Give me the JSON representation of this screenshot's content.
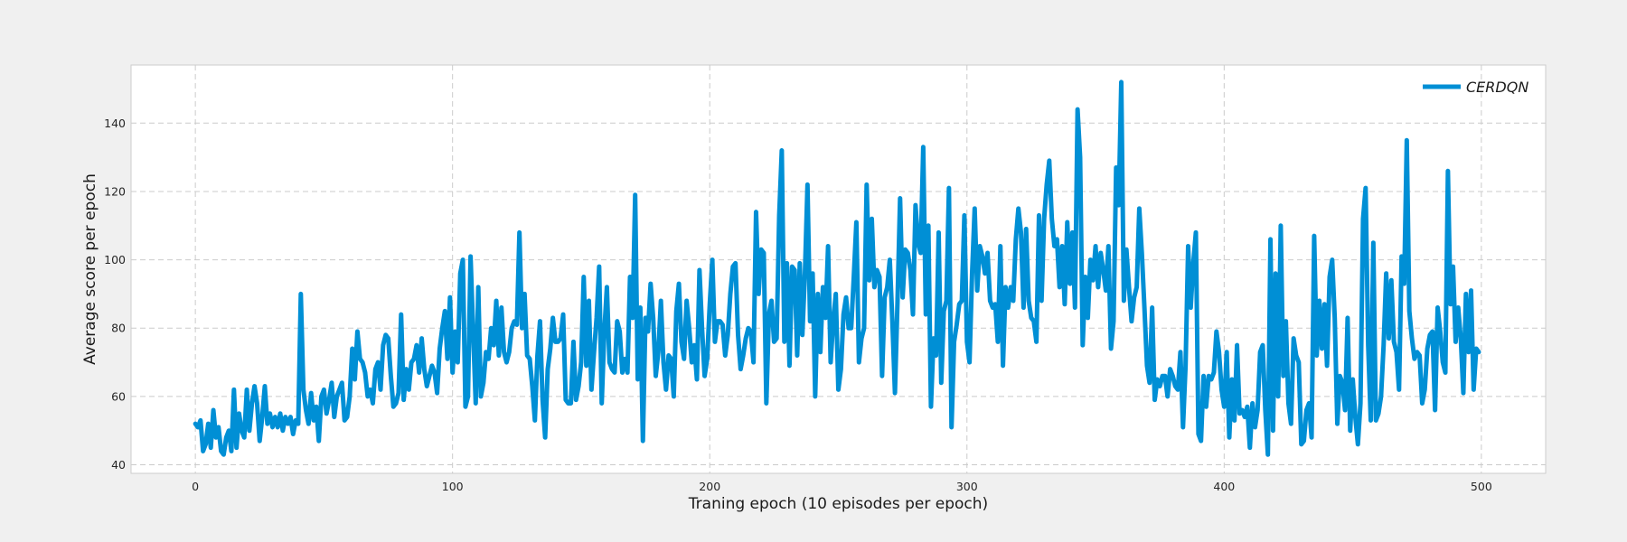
{
  "chart_data": {
    "type": "line",
    "title": "",
    "xlabel": "Traning epoch (10 episodes per epoch)",
    "ylabel": "Average score per epoch",
    "xlim": [
      -25,
      525
    ],
    "ylim": [
      37.5,
      157
    ],
    "xticks": [
      0,
      100,
      200,
      300,
      400,
      500
    ],
    "yticks": [
      40,
      60,
      80,
      100,
      120,
      140
    ],
    "grid": true,
    "legend_position": "top-right",
    "colors": {
      "series": "#008fd5",
      "grid": "#cbcbcb",
      "background": "#f0f0f0",
      "plot": "#ffffff",
      "frame": "#cccccc"
    },
    "series": [
      {
        "name": "CERDQN",
        "x_start": 0,
        "x_step": 1,
        "values": [
          52,
          51,
          53,
          44,
          46,
          52,
          45,
          56,
          48,
          51,
          44,
          43,
          48,
          50,
          44,
          62,
          45,
          55,
          50,
          48,
          62,
          50,
          58,
          63,
          58,
          47,
          54,
          63,
          52,
          55,
          51,
          54,
          51,
          55,
          50,
          54,
          52,
          54,
          49,
          53,
          52,
          90,
          62,
          56,
          52,
          61,
          53,
          57,
          47,
          60,
          62,
          55,
          59,
          64,
          54,
          60,
          62,
          64,
          53,
          54,
          60,
          74,
          65,
          79,
          71,
          70,
          67,
          60,
          62,
          58,
          68,
          70,
          62,
          75,
          78,
          77,
          66,
          57,
          58,
          61,
          84,
          59,
          68,
          62,
          70,
          71,
          75,
          67,
          77,
          68,
          63,
          66,
          69,
          67,
          61,
          74,
          80,
          85,
          71,
          89,
          67,
          79,
          70,
          96,
          100,
          57,
          60,
          101,
          79,
          58,
          92,
          60,
          64,
          73,
          71,
          80,
          75,
          88,
          72,
          86,
          73,
          70,
          73,
          80,
          82,
          81,
          108,
          80,
          90,
          72,
          71,
          63,
          53,
          72,
          82,
          59,
          48,
          68,
          74,
          83,
          76,
          76,
          77,
          84,
          59,
          58,
          58,
          76,
          59,
          63,
          70,
          95,
          69,
          88,
          62,
          73,
          83,
          98,
          58,
          79,
          92,
          70,
          68,
          67,
          82,
          79,
          67,
          71,
          67,
          95,
          83,
          119,
          65,
          86,
          47,
          83,
          79,
          93,
          83,
          66,
          73,
          88,
          70,
          62,
          72,
          71,
          60,
          85,
          93,
          76,
          71,
          88,
          80,
          70,
          75,
          65,
          97,
          80,
          66,
          71,
          87,
          100,
          76,
          82,
          82,
          81,
          72,
          78,
          90,
          98,
          99,
          78,
          68,
          72,
          77,
          80,
          79,
          70,
          114,
          90,
          103,
          102,
          58,
          84,
          88,
          76,
          77,
          113,
          132,
          76,
          99,
          69,
          98,
          97,
          72,
          99,
          78,
          96,
          122,
          82,
          96,
          60,
          90,
          73,
          92,
          83,
          104,
          70,
          82,
          90,
          62,
          68,
          84,
          89,
          80,
          80,
          95,
          111,
          70,
          77,
          80,
          122,
          94,
          112,
          92,
          97,
          95,
          66,
          89,
          92,
          100,
          82,
          61,
          88,
          118,
          89,
          103,
          102,
          97,
          84,
          116,
          105,
          102,
          133,
          84,
          110,
          57,
          77,
          72,
          108,
          64,
          85,
          88,
          121,
          51,
          76,
          81,
          87,
          88,
          113,
          76,
          70,
          96,
          115,
          91,
          104,
          101,
          96,
          102,
          88,
          86,
          87,
          76,
          104,
          69,
          92,
          86,
          92,
          88,
          106,
          115,
          108,
          86,
          109,
          88,
          83,
          82,
          76,
          113,
          88,
          112,
          122,
          129,
          112,
          104,
          106,
          92,
          104,
          87,
          111,
          93,
          108,
          86,
          144,
          130,
          75,
          95,
          83,
          100,
          94,
          104,
          92,
          102,
          97,
          91,
          104,
          74,
          82,
          127,
          116,
          152,
          88,
          103,
          92,
          82,
          89,
          92,
          115,
          102,
          86,
          69,
          64,
          86,
          59,
          65,
          63,
          66,
          66,
          60,
          68,
          66,
          63,
          62,
          73,
          51,
          69,
          104,
          86,
          99,
          108,
          49,
          47,
          66,
          57,
          66,
          65,
          67,
          79,
          73,
          62,
          57,
          73,
          48,
          65,
          53,
          75,
          55,
          56,
          54,
          57,
          45,
          58,
          51,
          56,
          73,
          75,
          56,
          43,
          106,
          50,
          96,
          60,
          110,
          66,
          82,
          58,
          52,
          77,
          72,
          70,
          46,
          47,
          56,
          58,
          48,
          107,
          72,
          88,
          74,
          87,
          69,
          95,
          100,
          83,
          52,
          66,
          64,
          56,
          83,
          50,
          65,
          54,
          46,
          58,
          112,
          121,
          75,
          53,
          105,
          53,
          55,
          60,
          75,
          96,
          77,
          94,
          76,
          73,
          62,
          101,
          93,
          135,
          85,
          77,
          71,
          73,
          72,
          58,
          62,
          74,
          78,
          79,
          56,
          86,
          79,
          70,
          67,
          126,
          87,
          98,
          76,
          86,
          77,
          61,
          90,
          73,
          91,
          62,
          74,
          73
        ]
      }
    ]
  }
}
